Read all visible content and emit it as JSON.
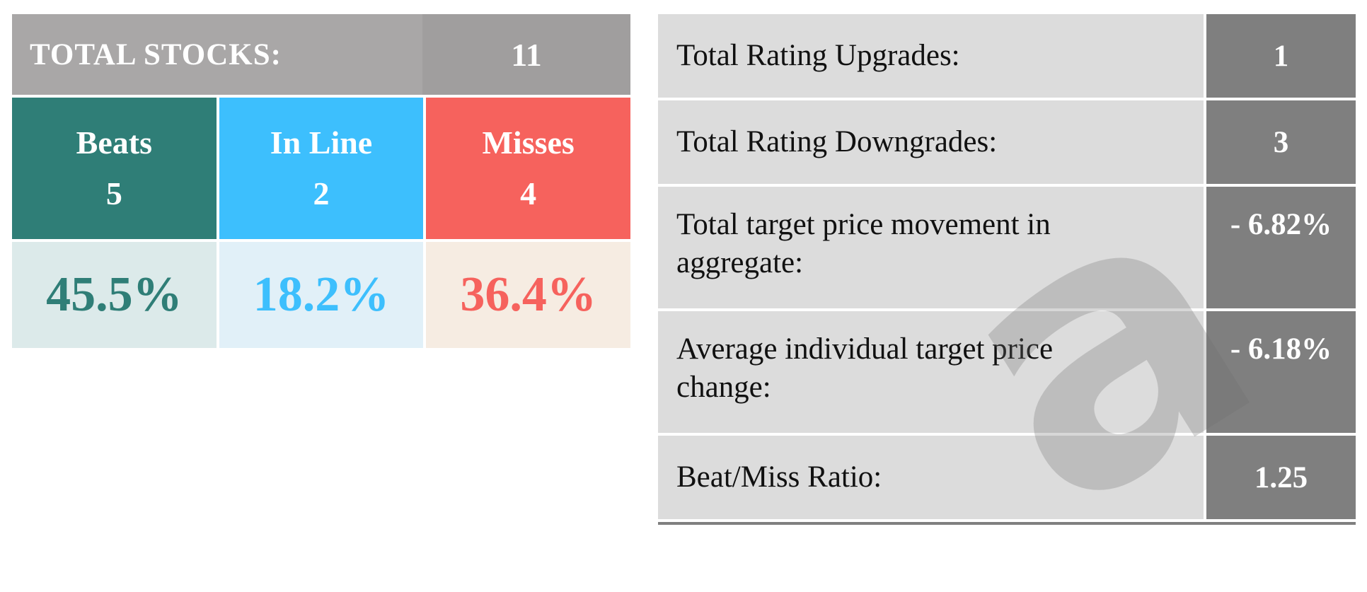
{
  "left": {
    "total_label": "TOTAL STOCKS:",
    "total_value": "11",
    "categories": [
      {
        "label": "Beats",
        "count": "5",
        "percent": "45.5%"
      },
      {
        "label": "In Line",
        "count": "2",
        "percent": "18.2%"
      },
      {
        "label": "Misses",
        "count": "4",
        "percent": "36.4%"
      }
    ]
  },
  "right": {
    "rows": [
      {
        "label": "Total Rating Upgrades:",
        "value": "1"
      },
      {
        "label": "Total Rating Downgrades:",
        "value": "3"
      },
      {
        "label_line1": "Total target price movement in",
        "label_line2": "aggregate:",
        "value": "- 6.82%"
      },
      {
        "label_line1": "Average individual target price",
        "label_line2": "change:",
        "value": "- 6.18%"
      },
      {
        "label": "Beat/Miss Ratio:",
        "value": "1.25"
      }
    ]
  },
  "colors": {
    "beats": "#2f7e77",
    "inline": "#3dbffd",
    "misses": "#f6625d",
    "header_gray": "#a9a7a7",
    "value_gray": "#7f7f7f",
    "label_gray": "#dcdcdc"
  },
  "watermark": "a"
}
